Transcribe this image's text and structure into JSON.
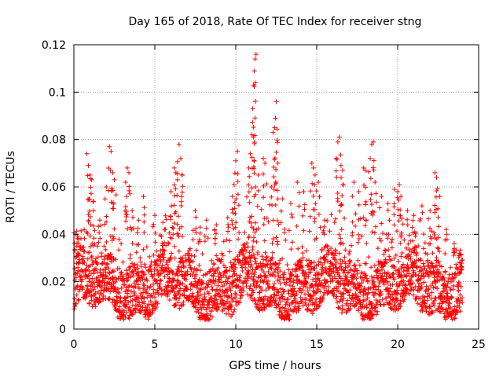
{
  "chart_data": {
    "type": "scatter",
    "title": "Day 165 of 2018, Rate Of TEC Index for receiver stng",
    "xlabel": "GPS time / hours",
    "ylabel": "ROTI / TECUs",
    "xlim": [
      0,
      25
    ],
    "ylim": [
      0,
      0.12
    ],
    "xticks": [
      0,
      5,
      10,
      15,
      20,
      25
    ],
    "yticks": [
      0,
      0.02,
      0.04,
      0.06,
      0.08,
      0.1,
      0.12
    ],
    "x_tick_labels": [
      "0",
      "5",
      "10",
      "15",
      "20",
      "25"
    ],
    "y_tick_labels": [
      "0",
      "0.02",
      "0.04",
      "0.06",
      "0.08",
      "0.1",
      "0.12"
    ],
    "grid": true,
    "marker": "+",
    "series": [
      {
        "name": "ROTI",
        "color": "#ff0000",
        "marker": "+",
        "x_range": [
          0,
          24
        ],
        "band_y_range": [
          0.008,
          0.03
        ],
        "points": [
          [
            0.1,
            0.04
          ],
          [
            0.3,
            0.038
          ],
          [
            0.8,
            0.074
          ],
          [
            0.9,
            0.069
          ],
          [
            1.0,
            0.065
          ],
          [
            1.1,
            0.063
          ],
          [
            1.2,
            0.054
          ],
          [
            1.6,
            0.046
          ],
          [
            2.0,
            0.06
          ],
          [
            2.2,
            0.077
          ],
          [
            2.3,
            0.075
          ],
          [
            2.4,
            0.066
          ],
          [
            2.5,
            0.063
          ],
          [
            3.2,
            0.062
          ],
          [
            3.3,
            0.068
          ],
          [
            3.4,
            0.066
          ],
          [
            3.6,
            0.05
          ],
          [
            4.0,
            0.046
          ],
          [
            4.3,
            0.056
          ],
          [
            5.0,
            0.048
          ],
          [
            5.5,
            0.045
          ],
          [
            6.0,
            0.058
          ],
          [
            6.2,
            0.068
          ],
          [
            6.3,
            0.066
          ],
          [
            6.4,
            0.063
          ],
          [
            6.5,
            0.078
          ],
          [
            6.6,
            0.072
          ],
          [
            6.7,
            0.065
          ],
          [
            7.5,
            0.05
          ],
          [
            7.8,
            0.043
          ],
          [
            8.2,
            0.046
          ],
          [
            8.8,
            0.044
          ],
          [
            9.5,
            0.047
          ],
          [
            9.8,
            0.056
          ],
          [
            9.9,
            0.061
          ],
          [
            10.0,
            0.071
          ],
          [
            10.1,
            0.075
          ],
          [
            10.8,
            0.068
          ],
          [
            10.9,
            0.074
          ],
          [
            11.0,
            0.082
          ],
          [
            11.05,
            0.093
          ],
          [
            11.1,
            0.103
          ],
          [
            11.15,
            0.109
          ],
          [
            11.2,
            0.114
          ],
          [
            11.25,
            0.116
          ],
          [
            11.4,
            0.065
          ],
          [
            11.7,
            0.072
          ],
          [
            11.8,
            0.07
          ],
          [
            12.2,
            0.06
          ],
          [
            12.3,
            0.083
          ],
          [
            12.4,
            0.085
          ],
          [
            12.45,
            0.089
          ],
          [
            12.5,
            0.096
          ],
          [
            12.6,
            0.07
          ],
          [
            12.9,
            0.055
          ],
          [
            13.4,
            0.053
          ],
          [
            13.8,
            0.062
          ],
          [
            14.2,
            0.058
          ],
          [
            14.7,
            0.07
          ],
          [
            14.8,
            0.068
          ],
          [
            14.9,
            0.065
          ],
          [
            15.1,
            0.062
          ],
          [
            15.5,
            0.046
          ],
          [
            16.2,
            0.072
          ],
          [
            16.3,
            0.079
          ],
          [
            16.4,
            0.081
          ],
          [
            16.5,
            0.069
          ],
          [
            16.6,
            0.067
          ],
          [
            17.3,
            0.062
          ],
          [
            17.6,
            0.058
          ],
          [
            17.9,
            0.068
          ],
          [
            18.0,
            0.067
          ],
          [
            18.3,
            0.072
          ],
          [
            18.4,
            0.078
          ],
          [
            18.5,
            0.079
          ],
          [
            18.6,
            0.062
          ],
          [
            19.0,
            0.056
          ],
          [
            19.4,
            0.053
          ],
          [
            19.8,
            0.059
          ],
          [
            20.0,
            0.058
          ],
          [
            20.1,
            0.061
          ],
          [
            20.2,
            0.056
          ],
          [
            20.6,
            0.05
          ],
          [
            21.0,
            0.048
          ],
          [
            21.5,
            0.052
          ],
          [
            22.0,
            0.05
          ],
          [
            22.3,
            0.066
          ],
          [
            22.4,
            0.064
          ],
          [
            22.6,
            0.056
          ],
          [
            23.0,
            0.042
          ],
          [
            23.5,
            0.034
          ],
          [
            23.8,
            0.032
          ]
        ]
      }
    ]
  }
}
